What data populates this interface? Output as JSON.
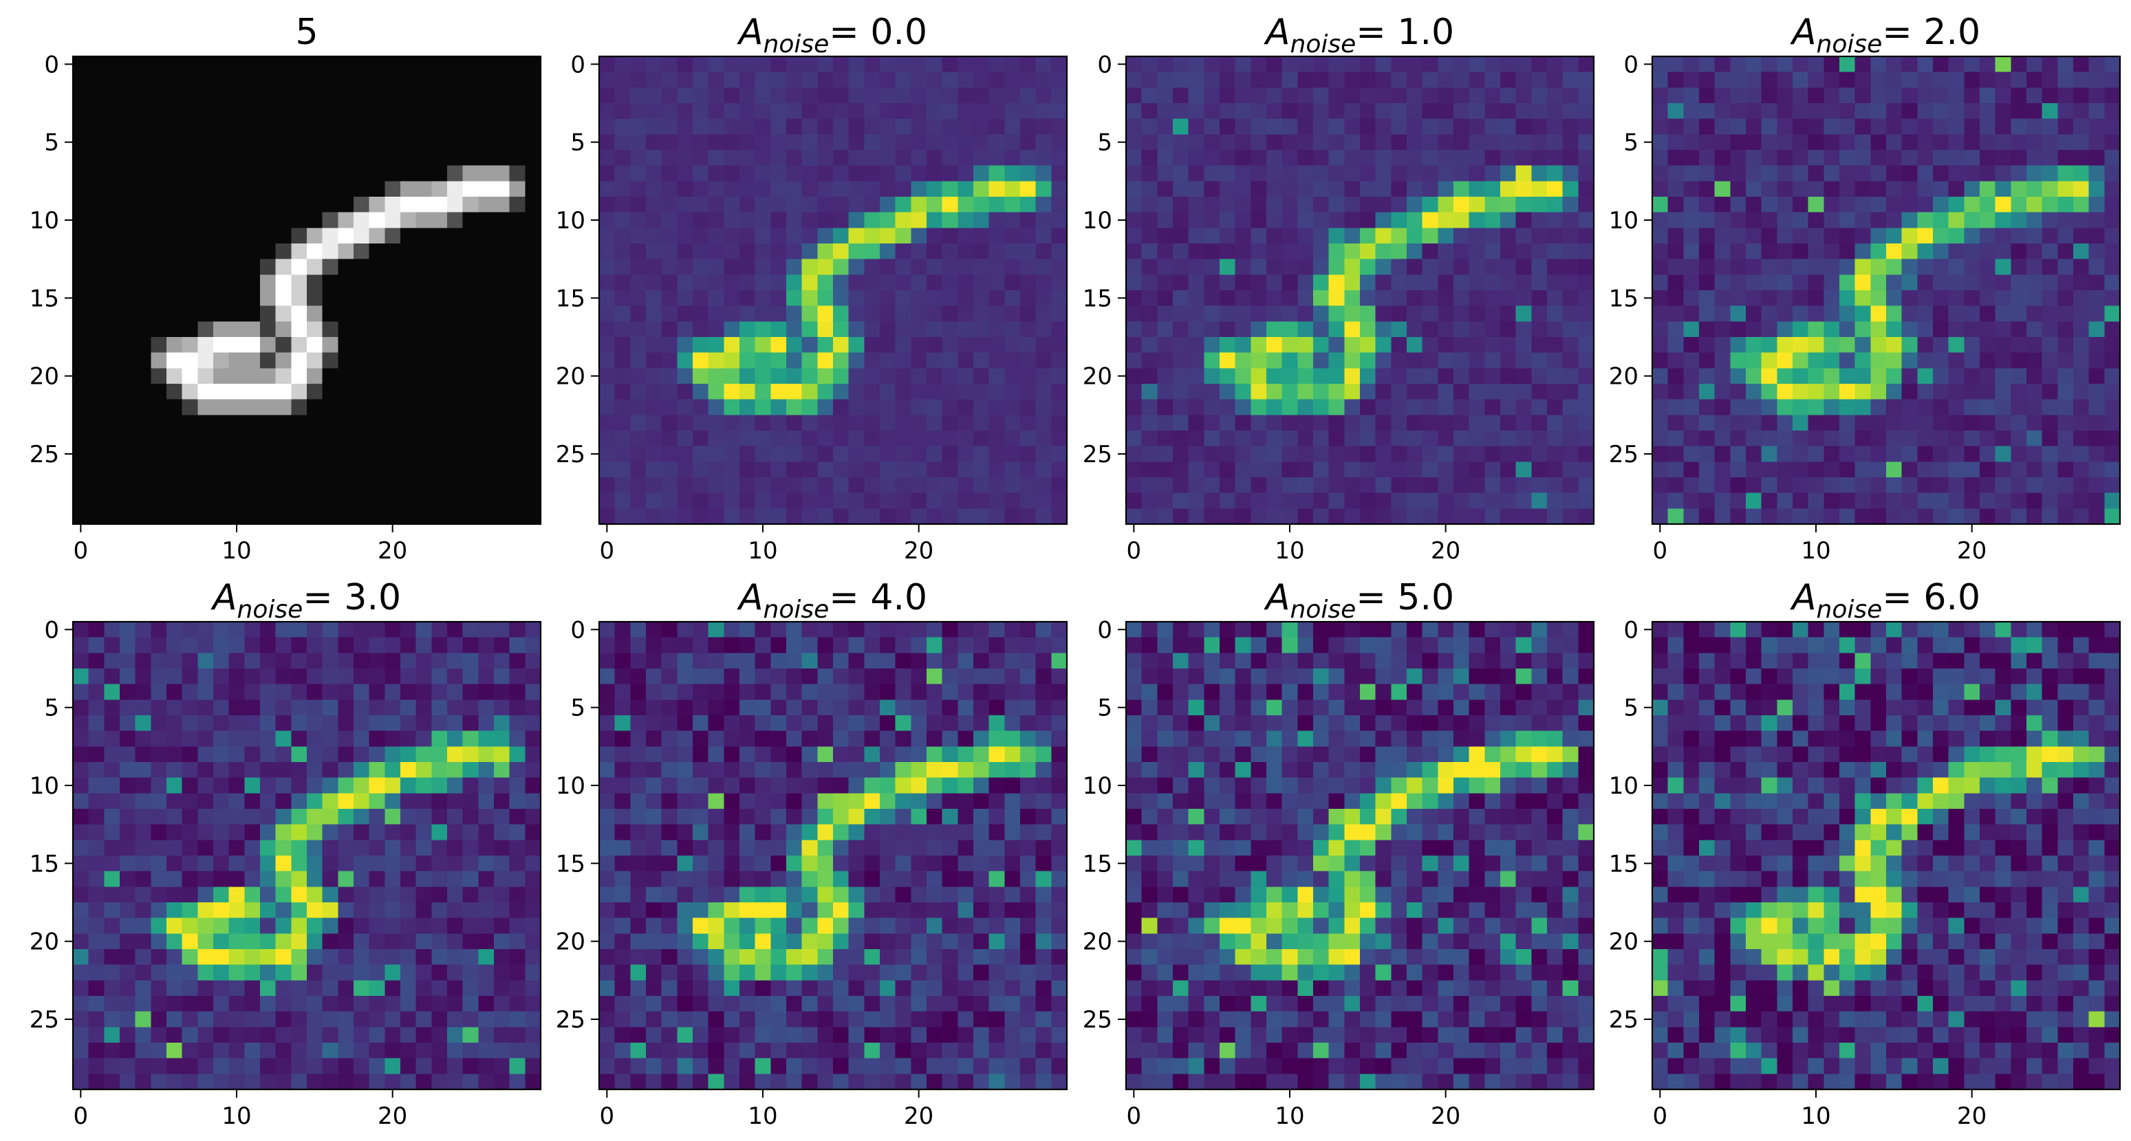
{
  "chart_data": [
    {
      "type": "heatmap",
      "title": "5",
      "colormap": "gray",
      "grid_size": [
        30,
        30
      ],
      "xlim": [
        -0.5,
        29.5
      ],
      "ylim": [
        29.5,
        -0.5
      ],
      "xticks": [
        0,
        10,
        20
      ],
      "yticks": [
        0,
        5,
        10,
        15,
        20,
        25
      ],
      "grid": false,
      "noise_amplitude": null
    },
    {
      "type": "heatmap",
      "title_symbol": "A",
      "title_subscript": "noise",
      "title_value": "= 0.0",
      "colormap": "viridis",
      "grid_size": [
        30,
        30
      ],
      "xlim": [
        -0.5,
        29.5
      ],
      "ylim": [
        29.5,
        -0.5
      ],
      "xticks": [
        0,
        10,
        20
      ],
      "yticks": [
        0,
        5,
        10,
        15,
        20,
        25
      ],
      "grid": false,
      "noise_amplitude": 0.0
    },
    {
      "type": "heatmap",
      "title_symbol": "A",
      "title_subscript": "noise",
      "title_value": "= 1.0",
      "colormap": "viridis",
      "grid_size": [
        30,
        30
      ],
      "xlim": [
        -0.5,
        29.5
      ],
      "ylim": [
        29.5,
        -0.5
      ],
      "xticks": [
        0,
        10,
        20
      ],
      "yticks": [
        0,
        5,
        10,
        15,
        20,
        25
      ],
      "grid": false,
      "noise_amplitude": 1.0
    },
    {
      "type": "heatmap",
      "title_symbol": "A",
      "title_subscript": "noise",
      "title_value": "= 2.0",
      "colormap": "viridis",
      "grid_size": [
        30,
        30
      ],
      "xlim": [
        -0.5,
        29.5
      ],
      "ylim": [
        29.5,
        -0.5
      ],
      "xticks": [
        0,
        10,
        20
      ],
      "yticks": [
        0,
        5,
        10,
        15,
        20,
        25
      ],
      "grid": false,
      "noise_amplitude": 2.0
    },
    {
      "type": "heatmap",
      "title_symbol": "A",
      "title_subscript": "noise",
      "title_value": "= 3.0",
      "colormap": "viridis",
      "grid_size": [
        30,
        30
      ],
      "xlim": [
        -0.5,
        29.5
      ],
      "ylim": [
        29.5,
        -0.5
      ],
      "xticks": [
        0,
        10,
        20
      ],
      "yticks": [
        0,
        5,
        10,
        15,
        20,
        25
      ],
      "grid": false,
      "noise_amplitude": 3.0
    },
    {
      "type": "heatmap",
      "title_symbol": "A",
      "title_subscript": "noise",
      "title_value": "= 4.0",
      "colormap": "viridis",
      "grid_size": [
        30,
        30
      ],
      "xlim": [
        -0.5,
        29.5
      ],
      "ylim": [
        29.5,
        -0.5
      ],
      "xticks": [
        0,
        10,
        20
      ],
      "yticks": [
        0,
        5,
        10,
        15,
        20,
        25
      ],
      "grid": false,
      "noise_amplitude": 4.0
    },
    {
      "type": "heatmap",
      "title_symbol": "A",
      "title_subscript": "noise",
      "title_value": "= 5.0",
      "colormap": "viridis",
      "grid_size": [
        30,
        30
      ],
      "xlim": [
        -0.5,
        29.5
      ],
      "ylim": [
        29.5,
        -0.5
      ],
      "xticks": [
        0,
        10,
        20
      ],
      "yticks": [
        0,
        5,
        10,
        15,
        20,
        25
      ],
      "grid": false,
      "noise_amplitude": 5.0
    },
    {
      "type": "heatmap",
      "title_symbol": "A",
      "title_subscript": "noise",
      "title_value": "= 6.0",
      "colormap": "viridis",
      "grid_size": [
        30,
        30
      ],
      "xlim": [
        -0.5,
        29.5
      ],
      "ylim": [
        29.5,
        -0.5
      ],
      "xticks": [
        0,
        10,
        20
      ],
      "yticks": [
        0,
        5,
        10,
        15,
        20,
        25
      ],
      "grid": false,
      "noise_amplitude": 6.0
    }
  ],
  "stroke_path": [
    [
      27,
      8
    ],
    [
      25,
      8
    ],
    [
      23,
      9
    ],
    [
      21,
      9
    ],
    [
      19,
      10
    ],
    [
      17,
      11
    ],
    [
      15,
      12
    ],
    [
      14,
      13
    ],
    [
      13,
      14
    ],
    [
      13,
      15
    ],
    [
      14,
      16
    ],
    [
      14,
      17
    ],
    [
      15,
      18
    ],
    [
      14,
      19
    ],
    [
      14,
      20
    ],
    [
      13,
      21
    ],
    [
      11,
      21
    ],
    [
      9,
      21
    ],
    [
      8,
      21
    ],
    [
      7,
      20
    ],
    [
      6,
      19
    ],
    [
      7,
      19
    ],
    [
      9,
      18
    ],
    [
      11,
      18
    ]
  ]
}
